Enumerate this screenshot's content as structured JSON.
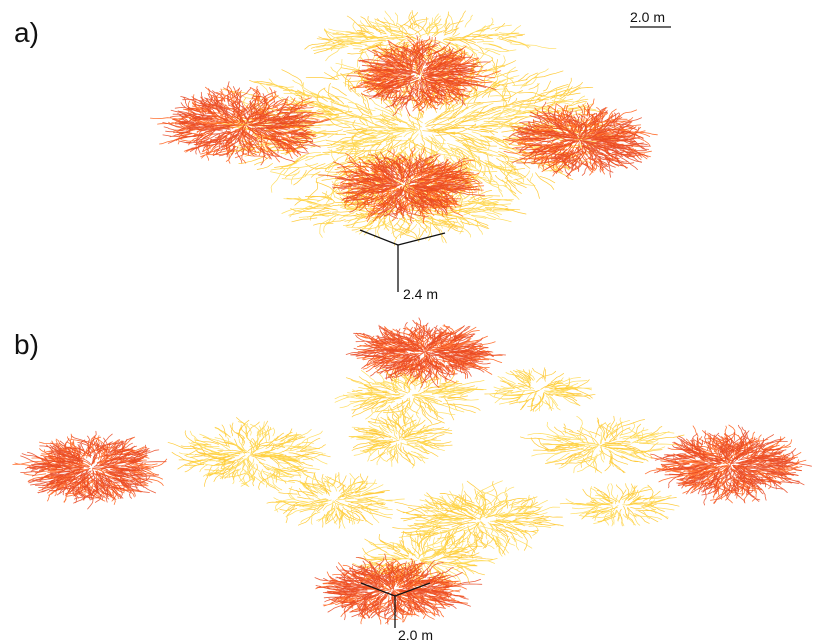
{
  "panel_a": {
    "label": "a)",
    "scale_bar_label": "2.0 m",
    "axis_label": "2.4 m"
  },
  "panel_b": {
    "label": "b)",
    "axis_label": "2.0 m"
  },
  "colors": {
    "dense_root": "#ff5a12",
    "dense_root_dark": "#e8441e",
    "sparse_root": "#ffc21a",
    "sparse_root_light": "#ffd84a",
    "axis": "#111111",
    "background": "#ffffff"
  }
}
